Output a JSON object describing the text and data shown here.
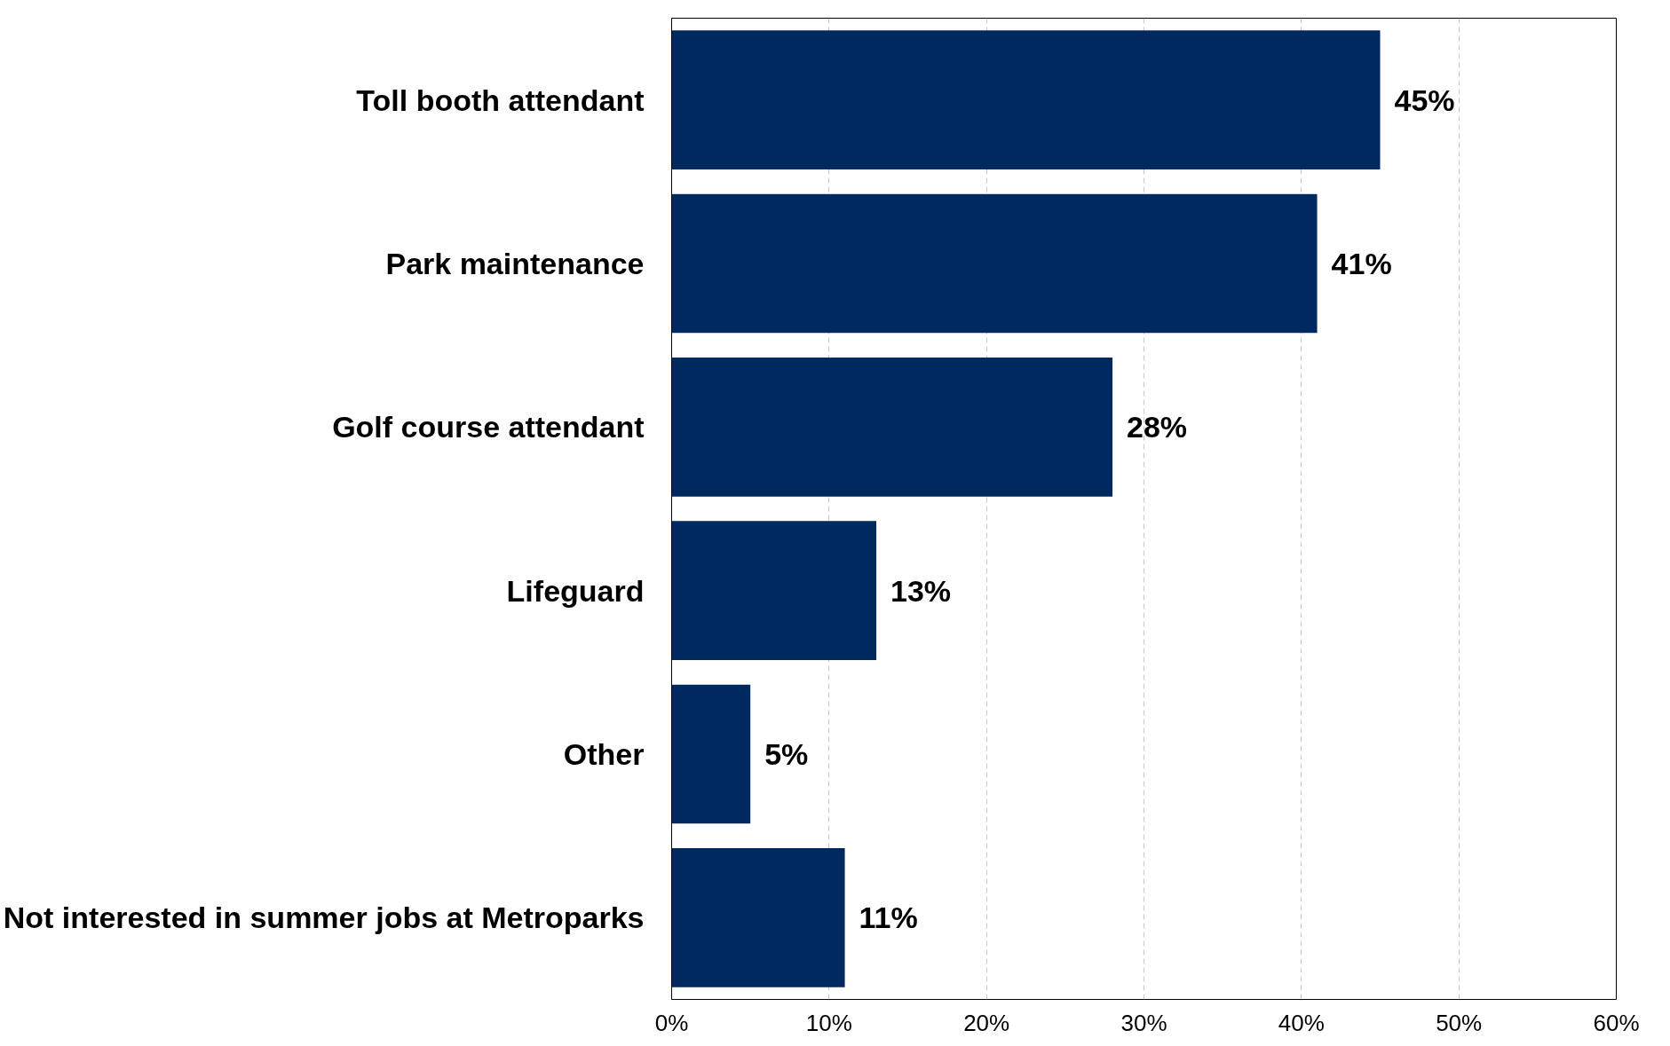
{
  "chart_data": {
    "type": "bar",
    "orientation": "horizontal",
    "categories": [
      "Toll booth attendant",
      "Park maintenance",
      "Golf course attendant",
      "Lifeguard",
      "Other",
      "Not interested in summer jobs at Metroparks"
    ],
    "values": [
      45,
      41,
      28,
      13,
      5,
      11
    ],
    "value_labels": [
      "45%",
      "41%",
      "28%",
      "13%",
      "5%",
      "11%"
    ],
    "color": "#002960",
    "xlim": [
      0,
      60
    ],
    "xticks": [
      {
        "value": 0,
        "label": "0%"
      },
      {
        "value": 10,
        "label": "10%"
      },
      {
        "value": 20,
        "label": "20%"
      },
      {
        "value": 30,
        "label": "30%"
      },
      {
        "value": 40,
        "label": "40%"
      },
      {
        "value": 50,
        "label": "50%"
      },
      {
        "value": 60,
        "label": "60%"
      }
    ],
    "grid": "x"
  }
}
